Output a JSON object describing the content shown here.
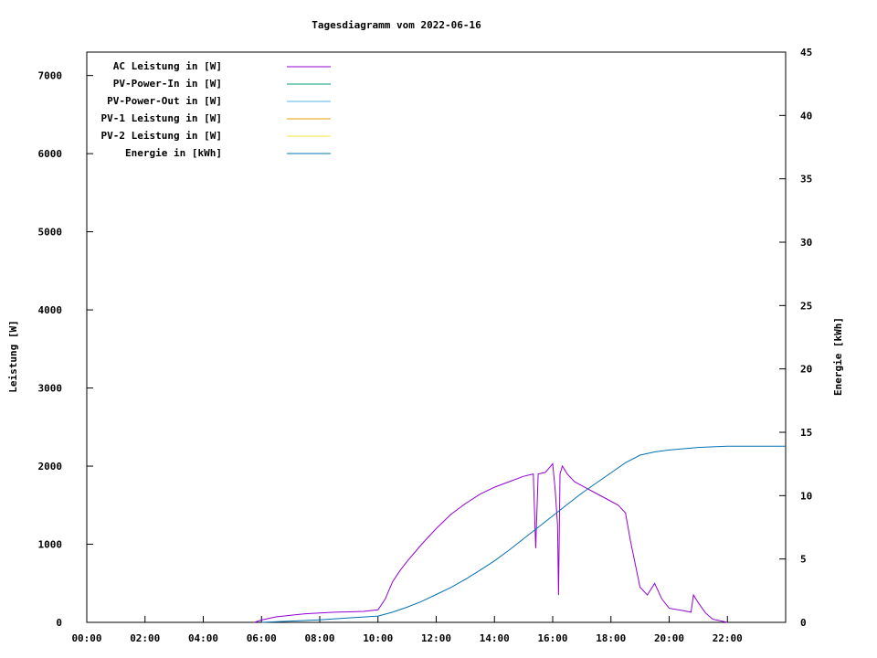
{
  "chart_data": {
    "type": "line",
    "title": "Tagesdiagramm vom 2022-06-16",
    "xlabel": "",
    "ylabel": "Leistung [W]",
    "y2label": "Energie [kWh]",
    "xlim": [
      "00:00",
      "24:00"
    ],
    "ylim": [
      0,
      7300
    ],
    "y2lim": [
      0,
      45
    ],
    "x_ticks": [
      "00:00",
      "02:00",
      "04:00",
      "06:00",
      "08:00",
      "10:00",
      "12:00",
      "14:00",
      "16:00",
      "18:00",
      "20:00",
      "22:00"
    ],
    "y_ticks": [
      0,
      1000,
      2000,
      3000,
      4000,
      5000,
      6000,
      7000
    ],
    "y2_ticks": [
      0,
      5,
      10,
      15,
      20,
      25,
      30,
      35,
      40,
      45
    ],
    "legend_position": "top-left",
    "grid": false,
    "series": [
      {
        "name": "AC Leistung in [W]",
        "color": "#9400d3",
        "axis": "left",
        "points": [
          [
            "05:45",
            0
          ],
          [
            "06:00",
            30
          ],
          [
            "06:30",
            70
          ],
          [
            "07:00",
            90
          ],
          [
            "07:30",
            110
          ],
          [
            "08:00",
            120
          ],
          [
            "08:30",
            130
          ],
          [
            "09:00",
            135
          ],
          [
            "09:30",
            140
          ],
          [
            "10:00",
            160
          ],
          [
            "10:15",
            300
          ],
          [
            "10:30",
            520
          ],
          [
            "10:45",
            660
          ],
          [
            "11:00",
            780
          ],
          [
            "11:30",
            1000
          ],
          [
            "12:00",
            1200
          ],
          [
            "12:30",
            1380
          ],
          [
            "13:00",
            1520
          ],
          [
            "13:30",
            1640
          ],
          [
            "14:00",
            1730
          ],
          [
            "14:30",
            1800
          ],
          [
            "15:00",
            1870
          ],
          [
            "15:20",
            1900
          ],
          [
            "15:25",
            950
          ],
          [
            "15:30",
            1900
          ],
          [
            "15:45",
            1920
          ],
          [
            "16:00",
            2030
          ],
          [
            "16:05",
            1700
          ],
          [
            "16:10",
            1250
          ],
          [
            "16:12",
            350
          ],
          [
            "16:15",
            1900
          ],
          [
            "16:20",
            2000
          ],
          [
            "16:30",
            1900
          ],
          [
            "16:45",
            1800
          ],
          [
            "17:00",
            1750
          ],
          [
            "17:30",
            1650
          ],
          [
            "18:00",
            1550
          ],
          [
            "18:15",
            1500
          ],
          [
            "18:30",
            1400
          ],
          [
            "18:40",
            1050
          ],
          [
            "18:50",
            750
          ],
          [
            "19:00",
            450
          ],
          [
            "19:15",
            350
          ],
          [
            "19:30",
            500
          ],
          [
            "19:45",
            300
          ],
          [
            "20:00",
            180
          ],
          [
            "20:30",
            150
          ],
          [
            "20:45",
            130
          ],
          [
            "20:50",
            350
          ],
          [
            "21:00",
            250
          ],
          [
            "21:15",
            120
          ],
          [
            "21:30",
            40
          ],
          [
            "21:45",
            20
          ],
          [
            "22:00",
            0
          ]
        ]
      },
      {
        "name": "PV-Power-In in [W]",
        "color": "#009e73",
        "axis": "left",
        "points": []
      },
      {
        "name": "PV-Power-Out in [W]",
        "color": "#56b4e9",
        "axis": "left",
        "points": []
      },
      {
        "name": "PV-1 Leistung in [W]",
        "color": "#e69f00",
        "axis": "left",
        "points": []
      },
      {
        "name": "PV-2 Leistung in [W]",
        "color": "#f0e442",
        "axis": "left",
        "points": []
      },
      {
        "name": "Energie in [kWh]",
        "color": "#0072b2",
        "axis": "right",
        "points": [
          [
            "06:00",
            0
          ],
          [
            "07:00",
            0.1
          ],
          [
            "08:00",
            0.2
          ],
          [
            "09:00",
            0.35
          ],
          [
            "10:00",
            0.5
          ],
          [
            "10:30",
            0.8
          ],
          [
            "11:00",
            1.2
          ],
          [
            "11:30",
            1.65
          ],
          [
            "12:00",
            2.2
          ],
          [
            "12:30",
            2.75
          ],
          [
            "13:00",
            3.4
          ],
          [
            "13:30",
            4.1
          ],
          [
            "14:00",
            4.85
          ],
          [
            "14:30",
            5.7
          ],
          [
            "15:00",
            6.6
          ],
          [
            "15:30",
            7.5
          ],
          [
            "16:00",
            8.4
          ],
          [
            "16:30",
            9.3
          ],
          [
            "17:00",
            10.2
          ],
          [
            "17:30",
            11.0
          ],
          [
            "18:00",
            11.8
          ],
          [
            "18:30",
            12.6
          ],
          [
            "19:00",
            13.2
          ],
          [
            "19:30",
            13.45
          ],
          [
            "20:00",
            13.6
          ],
          [
            "20:30",
            13.7
          ],
          [
            "21:00",
            13.8
          ],
          [
            "21:30",
            13.85
          ],
          [
            "22:00",
            13.9
          ],
          [
            "24:00",
            13.9
          ]
        ]
      }
    ]
  }
}
